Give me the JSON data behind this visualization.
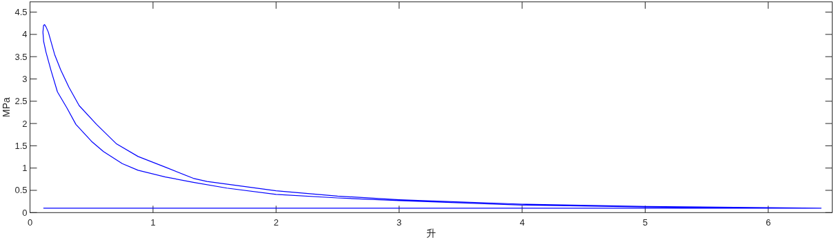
{
  "chart_data": {
    "type": "line",
    "xlabel": "升",
    "ylabel": "MPa",
    "color": "#0000ff",
    "x": [
      0.111,
      6.43,
      6.0,
      5,
      4,
      3,
      2.5,
      2,
      1.6,
      1.327,
      1.1,
      0.878,
      0.75,
      0.597,
      0.5,
      0.373,
      0.3,
      0.223,
      0.17,
      0.13,
      0.111,
      0.105,
      0.11,
      0.118,
      0.13,
      0.149,
      0.2,
      0.25,
      0.317,
      0.4,
      0.541,
      0.7,
      0.878,
      1.1,
      1.327,
      1.439,
      2.0,
      2.5,
      3,
      4,
      5,
      6,
      6.43
    ],
    "values": [
      0.1,
      0.1,
      0.1,
      0.125,
      0.17,
      0.27,
      0.33,
      0.41,
      0.55,
      0.68,
      0.8,
      0.95,
      1.1,
      1.37,
      1.6,
      1.98,
      2.35,
      2.71,
      3.2,
      3.6,
      3.84,
      4.05,
      4.2,
      4.22,
      4.17,
      4.05,
      3.55,
      3.2,
      2.81,
      2.4,
      1.98,
      1.55,
      1.26,
      1.02,
      0.77,
      0.7,
      0.49,
      0.37,
      0.29,
      0.19,
      0.14,
      0.11,
      0.1
    ],
    "xlim": [
      0,
      6.52
    ],
    "ylim": [
      0,
      4.73
    ],
    "xticks": [
      0,
      1,
      2,
      3,
      4,
      5,
      6
    ],
    "yticks": [
      0,
      0.5,
      1,
      1.5,
      2,
      2.5,
      3,
      3.5,
      4,
      4.5
    ]
  }
}
